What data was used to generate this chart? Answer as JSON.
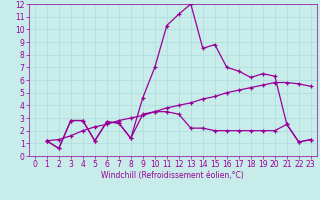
{
  "title": "",
  "xlabel": "Windchill (Refroidissement éolien,°C)",
  "bg_color": "#c8ecea",
  "line_color": "#990099",
  "grid_color": "#aadddd",
  "spine_color": "#990099",
  "xlim": [
    -0.5,
    23.5
  ],
  "ylim": [
    0,
    12
  ],
  "xticks": [
    0,
    1,
    2,
    3,
    4,
    5,
    6,
    7,
    8,
    9,
    10,
    11,
    12,
    13,
    14,
    15,
    16,
    17,
    18,
    19,
    20,
    21,
    22,
    23
  ],
  "yticks": [
    0,
    1,
    2,
    3,
    4,
    5,
    6,
    7,
    8,
    9,
    10,
    11,
    12
  ],
  "series": [
    {
      "x": [
        1,
        2,
        3,
        4,
        5,
        6,
        7,
        8,
        9,
        10,
        11,
        12,
        13,
        14,
        15,
        16,
        17,
        18,
        19,
        20,
        21,
        22,
        23
      ],
      "y": [
        1.2,
        0.6,
        2.8,
        2.8,
        1.2,
        2.7,
        2.6,
        1.4,
        4.6,
        7.0,
        10.3,
        11.2,
        12.0,
        8.5,
        8.8,
        7.0,
        6.7,
        6.2,
        6.5,
        6.3,
        2.5,
        1.1,
        1.3
      ]
    },
    {
      "x": [
        1,
        2,
        3,
        4,
        5,
        6,
        7,
        8,
        9,
        10,
        11,
        12,
        13,
        14,
        15,
        16,
        17,
        18,
        19,
        20,
        21,
        22,
        23
      ],
      "y": [
        1.2,
        0.6,
        2.8,
        2.8,
        1.2,
        2.7,
        2.6,
        1.4,
        3.3,
        3.5,
        3.5,
        3.3,
        2.2,
        2.2,
        2.0,
        2.0,
        2.0,
        2.0,
        2.0,
        2.0,
        2.5,
        1.1,
        1.3
      ]
    },
    {
      "x": [
        1,
        2,
        3,
        4,
        5,
        6,
        7,
        8,
        9,
        10,
        11,
        12,
        13,
        14,
        15,
        16,
        17,
        18,
        19,
        20,
        21,
        22,
        23
      ],
      "y": [
        1.2,
        1.3,
        1.6,
        2.0,
        2.3,
        2.5,
        2.8,
        3.0,
        3.2,
        3.5,
        3.8,
        4.0,
        4.2,
        4.5,
        4.7,
        5.0,
        5.2,
        5.4,
        5.6,
        5.8,
        5.8,
        5.7,
        5.5
      ]
    }
  ],
  "tick_fontsize": 5.5,
  "xlabel_fontsize": 5.5,
  "linewidth": 0.9,
  "markersize": 3.0
}
